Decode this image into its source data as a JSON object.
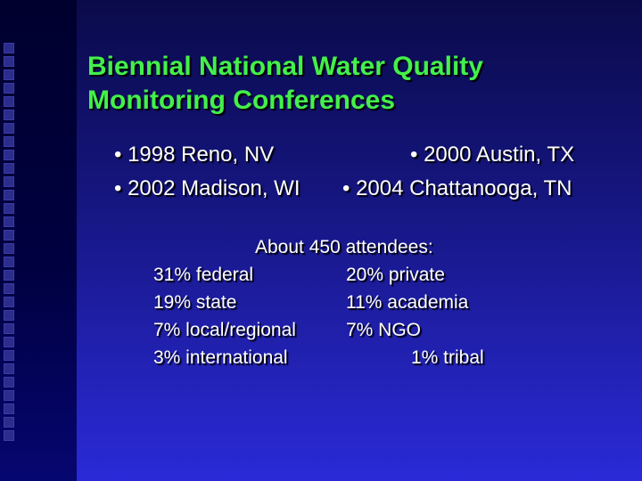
{
  "slide": {
    "title_line1": "Biennial National Water Quality",
    "title_line2": "Monitoring Conferences",
    "conferences": [
      "• 1998 Reno, NV",
      "• 2000 Austin, TX",
      "• 2002 Madison, WI",
      "• 2004 Chattanooga, TN"
    ],
    "attendance_heading": "About 450 attendees:",
    "attendance": [
      {
        "label": "31% federal"
      },
      {
        "label": "20% private"
      },
      {
        "label": "19% state"
      },
      {
        "label": "11% academia"
      },
      {
        "label": "7% local/regional"
      },
      {
        "label": "7% NGO"
      },
      {
        "label": "3% international"
      },
      {
        "label": "1% tribal"
      }
    ]
  },
  "colors": {
    "title": "#44f04a",
    "text": "#ffffff",
    "background_top": "#0a0a4a",
    "background_bottom": "#2a2ad8"
  }
}
